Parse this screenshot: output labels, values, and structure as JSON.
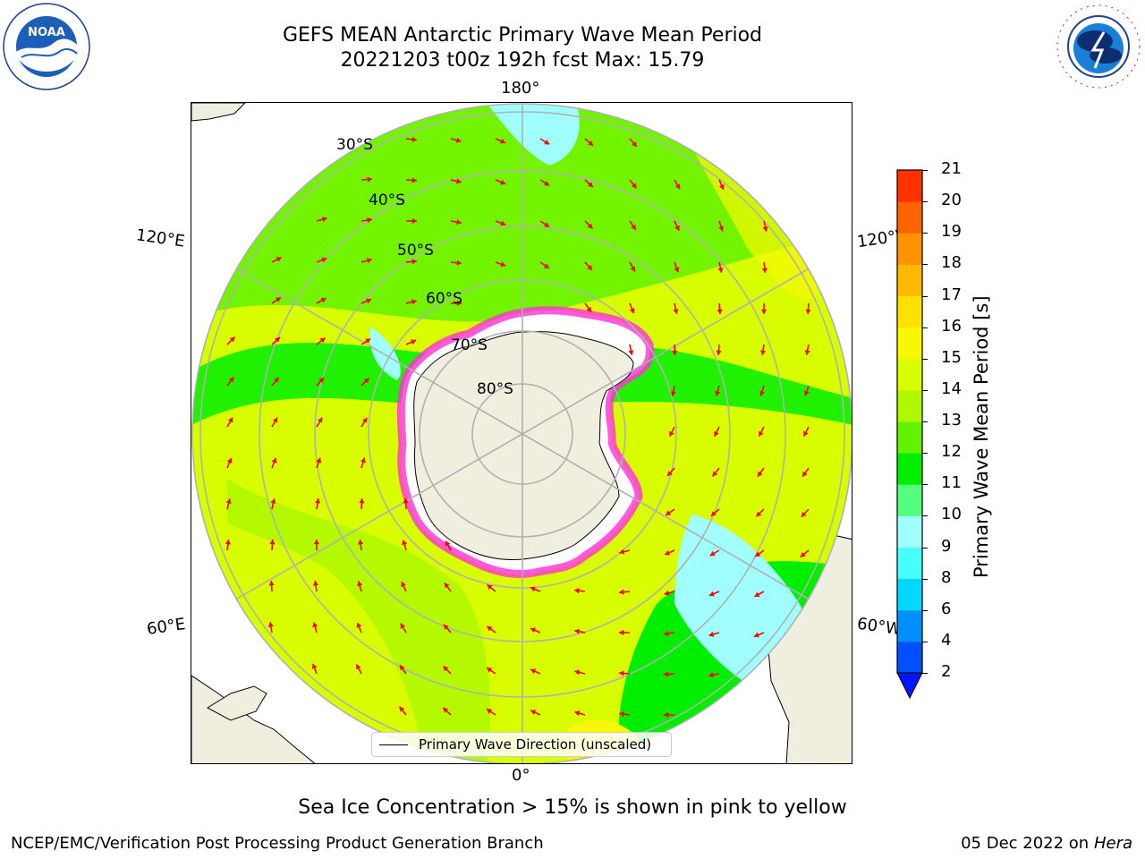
{
  "title": {
    "line1": "GEFS MEAN Antarctic Primary Wave Mean Period",
    "line2": "20221203 t00z 192h fcst   Max: 15.79"
  },
  "logos": {
    "left": {
      "name": "NOAA",
      "text": "NOAA",
      "ring_text": "NATIONAL OCEANIC AND ATMOSPHERIC ADMINISTRATION · U.S. DEPARTMENT OF COMMERCE"
    },
    "right": {
      "name": "National Weather Service",
      "ring_text": "NATIONAL WEATHER SERVICE"
    }
  },
  "map": {
    "projection": "south polar stereographic",
    "longitude_labels": {
      "top": "180°",
      "bottom": "0°",
      "upper_left": "120°E",
      "upper_right": "120°W",
      "lower_left": "60°E",
      "lower_right": "60°W"
    },
    "latitude_labels": [
      "30°S",
      "40°S",
      "50°S",
      "60°S",
      "70°S",
      "80°S"
    ],
    "legend_label": "Primary Wave Direction (unscaled)",
    "arrow_color": "#ff0000",
    "land_color": "#efeedf",
    "ice_color": "#ffffff",
    "grid_color": "#b0b0b0"
  },
  "colorbar": {
    "label": "Primary Wave Mean Period [s]",
    "tick_labels": [
      "2",
      "4",
      "6",
      "8",
      "9",
      "10",
      "11",
      "12",
      "13",
      "14",
      "15",
      "16",
      "17",
      "18",
      "19",
      "20",
      "21"
    ],
    "colors": [
      "#0050ff",
      "#0090ff",
      "#00d8ff",
      "#48ffff",
      "#a0fffc",
      "#52ff7e",
      "#00ef00",
      "#60f200",
      "#b0f800",
      "#d8fd00",
      "#f8f800",
      "#ffe000",
      "#ffba00",
      "#ff9200",
      "#ff6400",
      "#ff3200"
    ],
    "extend_min_color": "#0018ff",
    "extend_max_color": "#ff0000"
  },
  "caption": "Sea Ice Concentration > 15% is shown in pink to yellow",
  "footer": {
    "left": "NCEP/EMC/Verification Post Processing Product Generation Branch",
    "right_date": "05 Dec 2022 on",
    "right_machine": "Hera"
  }
}
